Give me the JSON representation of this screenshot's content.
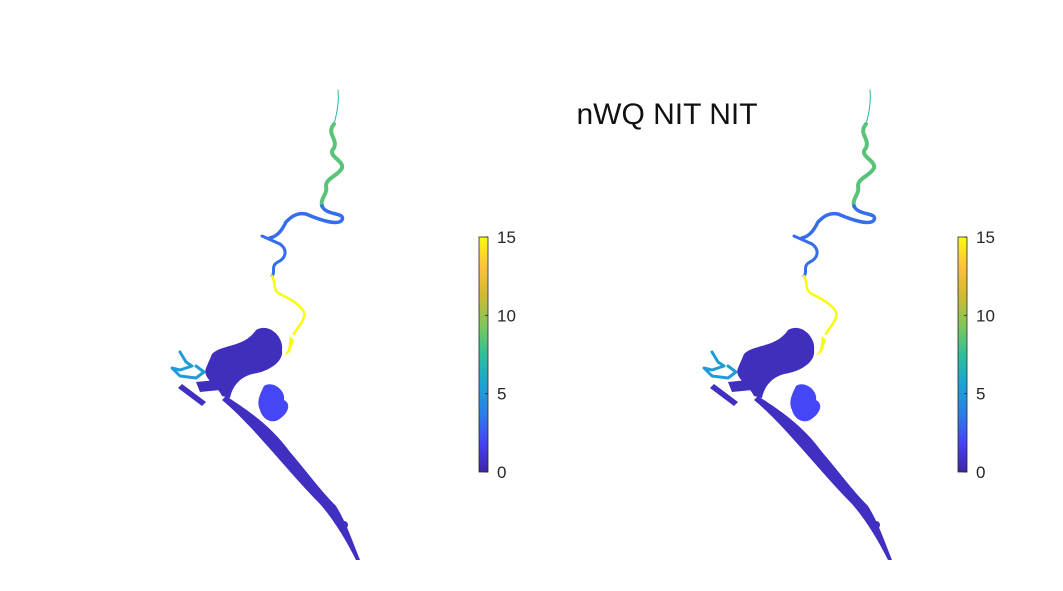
{
  "figure": {
    "title": "nWQ NIT NIT"
  },
  "colorbar": {
    "min": 0,
    "max": 15,
    "ticks": [
      "0",
      "5",
      "10",
      "15"
    ],
    "tick_values": [
      0,
      5,
      10,
      15
    ],
    "colormap": "parula",
    "colormap_stops": [
      "#3e26a8",
      "#4743f8",
      "#2c7fe8",
      "#1aa5d3",
      "#2ec09a",
      "#7fc85a",
      "#d0ba32",
      "#fec238",
      "#f9fb0e"
    ]
  },
  "panels": [
    {
      "name": "left",
      "segments": [
        {
          "name": "upper-river-tip",
          "value": 7
        },
        {
          "name": "upper-river-green",
          "value": 8.5
        },
        {
          "name": "mid-river-blue",
          "value": 3.2
        },
        {
          "name": "river-yellow",
          "value": 15
        },
        {
          "name": "main-lake",
          "value": 0.5
        },
        {
          "name": "south-lagoon",
          "value": 2
        },
        {
          "name": "west-channel",
          "value": 5.2
        },
        {
          "name": "coastal-strip",
          "value": 0.6
        }
      ]
    },
    {
      "name": "right",
      "segments": [
        {
          "name": "upper-river-tip",
          "value": 7
        },
        {
          "name": "upper-river-green",
          "value": 8.5
        },
        {
          "name": "mid-river-blue",
          "value": 3.2
        },
        {
          "name": "river-yellow",
          "value": 15
        },
        {
          "name": "main-lake",
          "value": 0.5
        },
        {
          "name": "south-lagoon",
          "value": 2
        },
        {
          "name": "west-channel",
          "value": 5.2
        },
        {
          "name": "coastal-strip",
          "value": 0.6
        }
      ]
    }
  ]
}
